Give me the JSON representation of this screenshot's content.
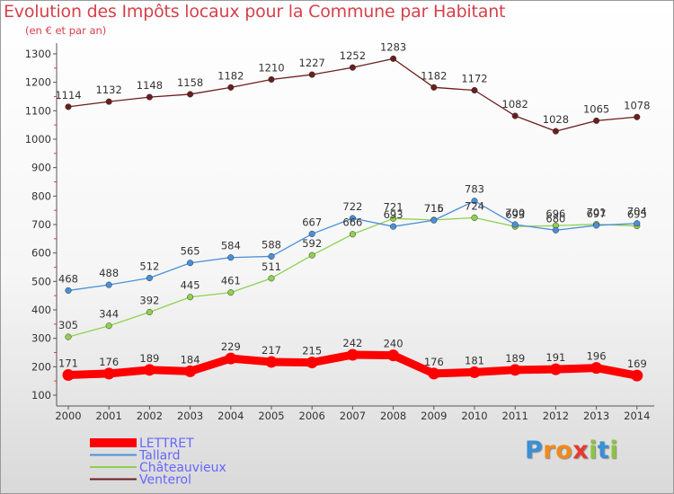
{
  "chart_data": {
    "type": "line",
    "title": "Evolution des Impôts locaux pour la Commune par Habitant",
    "subtitle": "(en € et par an)",
    "x": [
      "2000",
      "2001",
      "2002",
      "2003",
      "2004",
      "2005",
      "2006",
      "2007",
      "2008",
      "2009",
      "2010",
      "2011",
      "2012",
      "2013",
      "2014"
    ],
    "ylim": [
      100,
      1300
    ],
    "yticks": [
      100,
      200,
      300,
      400,
      500,
      600,
      700,
      800,
      900,
      1000,
      1100,
      1200,
      1300
    ],
    "grid": false,
    "legend_position": "bottom-left",
    "series": [
      {
        "name": "LETTRET",
        "color": "#ff0000",
        "values": [
          171,
          176,
          189,
          184,
          229,
          217,
          215,
          242,
          240,
          176,
          181,
          189,
          191,
          196,
          169
        ]
      },
      {
        "name": "Tallard",
        "color": "#4a90d9",
        "values": [
          468,
          488,
          512,
          565,
          584,
          588,
          667,
          722,
          693,
          715,
          783,
          700,
          680,
          697,
          704
        ]
      },
      {
        "name": "Châteauvieux",
        "color": "#8fd14f",
        "values": [
          305,
          344,
          392,
          445,
          461,
          511,
          592,
          666,
          721,
          716,
          724,
          693,
          696,
          701,
          695
        ]
      },
      {
        "name": "Venterol",
        "color": "#6b1e1e",
        "values": [
          1114,
          1132,
          1148,
          1158,
          1182,
          1210,
          1227,
          1252,
          1283,
          1182,
          1172,
          1082,
          1028,
          1065,
          1078
        ]
      }
    ]
  },
  "logo": {
    "letters": [
      "P",
      "r",
      "o",
      "x",
      "i",
      "t",
      "i"
    ],
    "colors": [
      "#3a8fd6",
      "#f08a1c",
      "#f08a1c",
      "#e63a2f",
      "#8bc53f",
      "#3a8fd6",
      "#8bc53f"
    ]
  }
}
